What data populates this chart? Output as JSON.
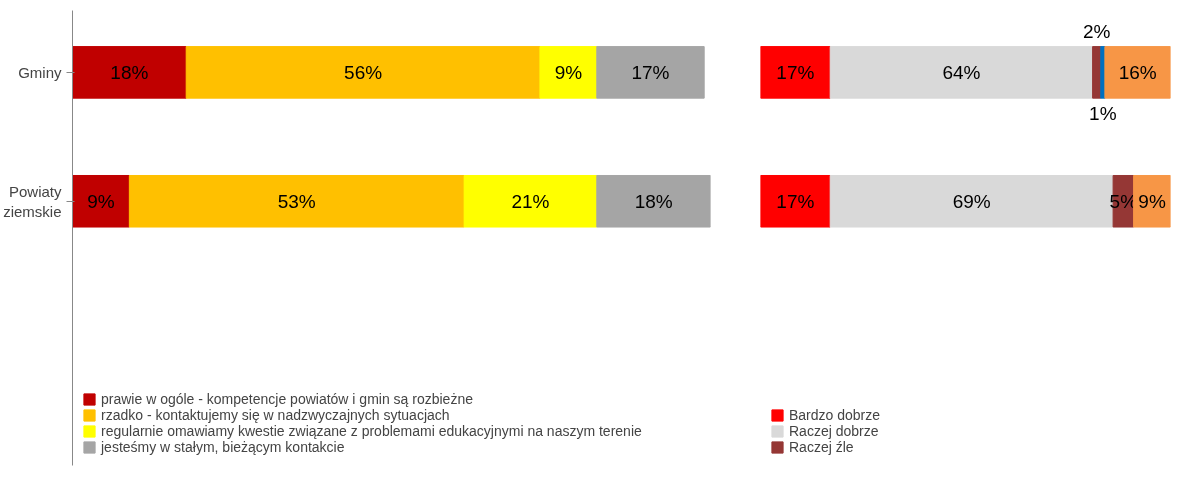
{
  "chart_data": [
    {
      "type": "bar",
      "orientation": "horizontal",
      "stacked": true,
      "categories": [
        "Gminy",
        "Powiaty ziemskie"
      ],
      "legend": "bottom",
      "grid": false,
      "series": [
        {
          "name": "prawie w ogóle - kompetencje powiatów i gmin są rozbieżne",
          "color": "#c00000",
          "values": [
            18,
            9
          ],
          "value_labels": [
            "18%",
            "9%"
          ]
        },
        {
          "name": "rzadko - kontaktujemy się w nadzwyczajnych sytuacjach",
          "color": "#ffc000",
          "values": [
            56,
            53
          ],
          "value_labels": [
            "56%",
            "53%"
          ]
        },
        {
          "name": "regularnie omawiamy kwestie związane z problemami edukacyjnymi na naszym terenie",
          "color": "#ffff00",
          "values": [
            9,
            21
          ],
          "value_labels": [
            "9%",
            "21%"
          ]
        },
        {
          "name": "jesteśmy w stałym, bieżącym kontakcie",
          "color": "#a5a5a5",
          "values": [
            17,
            18
          ],
          "value_labels": [
            "17%",
            "18%"
          ]
        }
      ]
    },
    {
      "type": "bar",
      "orientation": "horizontal",
      "stacked": true,
      "tick_labels": false,
      "legend": "bottom",
      "grid": false,
      "series": [
        {
          "name": "Bardzo dobrze",
          "color": "#ff0000",
          "values": [
            17,
            17
          ],
          "value_labels": [
            "17%",
            "17%"
          ]
        },
        {
          "name": "Raczej dobrze",
          "color": "#d9d9d9",
          "values": [
            64,
            69
          ],
          "value_labels": [
            "64%",
            "69%"
          ]
        },
        {
          "name": "Raczej źle",
          "color": "#953735",
          "values": [
            2,
            5
          ],
          "value_labels": [
            "2%",
            "5%"
          ]
        },
        {
          "color": "#0070c0",
          "values": [
            1,
            null
          ],
          "value_labels": [
            "1%",
            null
          ]
        },
        {
          "color": "#f79646",
          "values": [
            16,
            9
          ],
          "value_labels": [
            "16%",
            "9%"
          ]
        }
      ]
    }
  ]
}
